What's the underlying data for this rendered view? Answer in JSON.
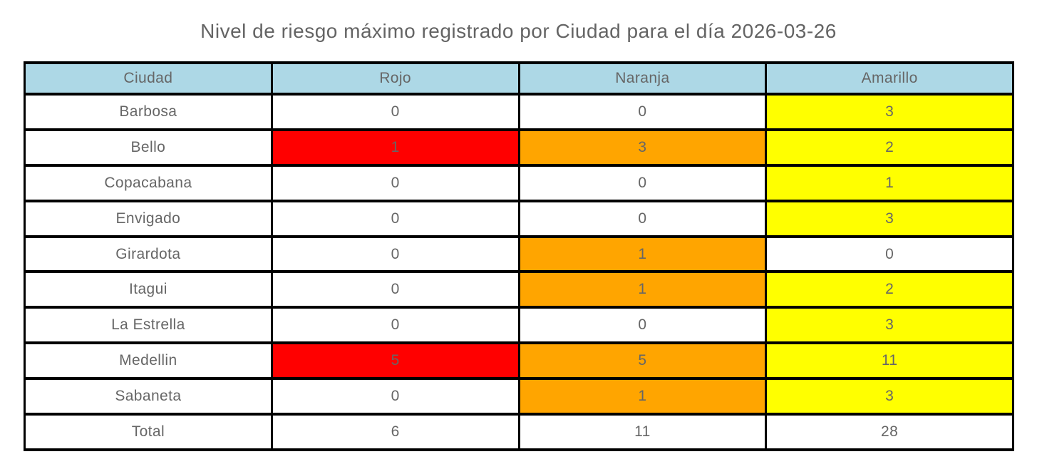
{
  "page": {
    "title": "Nivel de riesgo máximo registrado por Ciudad para el día 2026-03-26"
  },
  "colors": {
    "header": "#ADD8E6",
    "white": "#FFFFFF",
    "red": "#FF0000",
    "orange": "#FFA500",
    "yellow": "#FFFF00",
    "border": "#000000",
    "text": "#666666",
    "title_text": "#646464"
  },
  "chart_data": {
    "type": "table",
    "title": "Nivel de riesgo máximo registrado por Ciudad para el día 2026-03-26",
    "columns": [
      "Ciudad",
      "Rojo",
      "Naranja",
      "Amarillo"
    ],
    "rows": [
      {
        "cells": [
          {
            "text": "Barbosa",
            "bg": "white"
          },
          {
            "text": "0",
            "bg": "white"
          },
          {
            "text": "0",
            "bg": "white"
          },
          {
            "text": "3",
            "bg": "yellow"
          }
        ]
      },
      {
        "cells": [
          {
            "text": "Bello",
            "bg": "white"
          },
          {
            "text": "1",
            "bg": "red"
          },
          {
            "text": "3",
            "bg": "orange"
          },
          {
            "text": "2",
            "bg": "yellow"
          }
        ]
      },
      {
        "cells": [
          {
            "text": "Copacabana",
            "bg": "white"
          },
          {
            "text": "0",
            "bg": "white"
          },
          {
            "text": "0",
            "bg": "white"
          },
          {
            "text": "1",
            "bg": "yellow"
          }
        ]
      },
      {
        "cells": [
          {
            "text": "Envigado",
            "bg": "white"
          },
          {
            "text": "0",
            "bg": "white"
          },
          {
            "text": "0",
            "bg": "white"
          },
          {
            "text": "3",
            "bg": "yellow"
          }
        ]
      },
      {
        "cells": [
          {
            "text": "Girardota",
            "bg": "white"
          },
          {
            "text": "0",
            "bg": "white"
          },
          {
            "text": "1",
            "bg": "orange"
          },
          {
            "text": "0",
            "bg": "white"
          }
        ]
      },
      {
        "cells": [
          {
            "text": "Itagui",
            "bg": "white"
          },
          {
            "text": "0",
            "bg": "white"
          },
          {
            "text": "1",
            "bg": "orange"
          },
          {
            "text": "2",
            "bg": "yellow"
          }
        ]
      },
      {
        "cells": [
          {
            "text": "La Estrella",
            "bg": "white"
          },
          {
            "text": "0",
            "bg": "white"
          },
          {
            "text": "0",
            "bg": "white"
          },
          {
            "text": "3",
            "bg": "yellow"
          }
        ]
      },
      {
        "cells": [
          {
            "text": "Medellin",
            "bg": "white"
          },
          {
            "text": "5",
            "bg": "red"
          },
          {
            "text": "5",
            "bg": "orange"
          },
          {
            "text": "11",
            "bg": "yellow"
          }
        ]
      },
      {
        "cells": [
          {
            "text": "Sabaneta",
            "bg": "white"
          },
          {
            "text": "0",
            "bg": "white"
          },
          {
            "text": "1",
            "bg": "orange"
          },
          {
            "text": "3",
            "bg": "yellow"
          }
        ]
      },
      {
        "cells": [
          {
            "text": "Total",
            "bg": "white"
          },
          {
            "text": "6",
            "bg": "white"
          },
          {
            "text": "11",
            "bg": "white"
          },
          {
            "text": "28",
            "bg": "white"
          }
        ]
      }
    ]
  }
}
